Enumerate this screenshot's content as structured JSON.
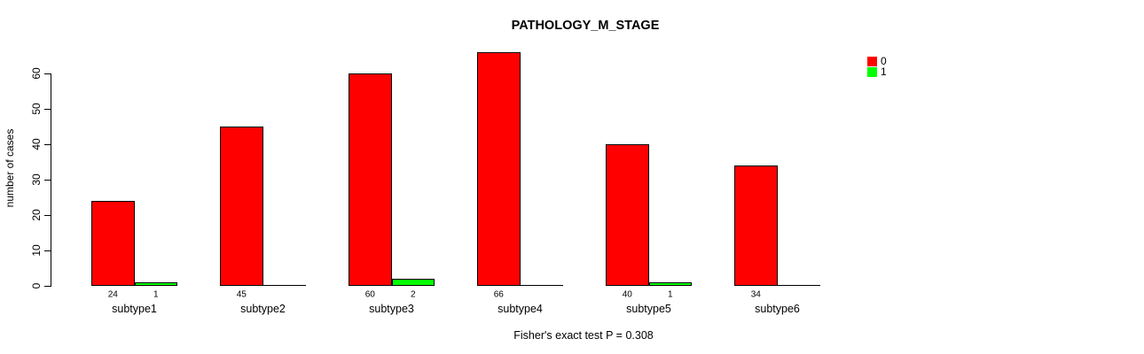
{
  "chart_data": {
    "type": "bar",
    "title": "PATHOLOGY_M_STAGE",
    "categories": [
      "subtype1",
      "subtype2",
      "subtype3",
      "subtype4",
      "subtype5",
      "subtype6"
    ],
    "series": [
      {
        "name": "0",
        "color": "#FF0000",
        "values": [
          24,
          45,
          60,
          66,
          40,
          34
        ]
      },
      {
        "name": "1",
        "color": "#00FF00",
        "values": [
          1,
          0,
          2,
          0,
          1,
          0
        ]
      }
    ],
    "xlabel": "",
    "ylabel": "number of cases",
    "ylim": [
      0,
      60
    ],
    "yticks": [
      0,
      10,
      20,
      30,
      40,
      50,
      60
    ],
    "grid": false,
    "legend_position": "top-right",
    "bar_value_labels_shown": true,
    "annotation": "Fisher's exact test P = 0.308",
    "background_color": "#FFFFFF",
    "bar_border_color": "#000000"
  }
}
